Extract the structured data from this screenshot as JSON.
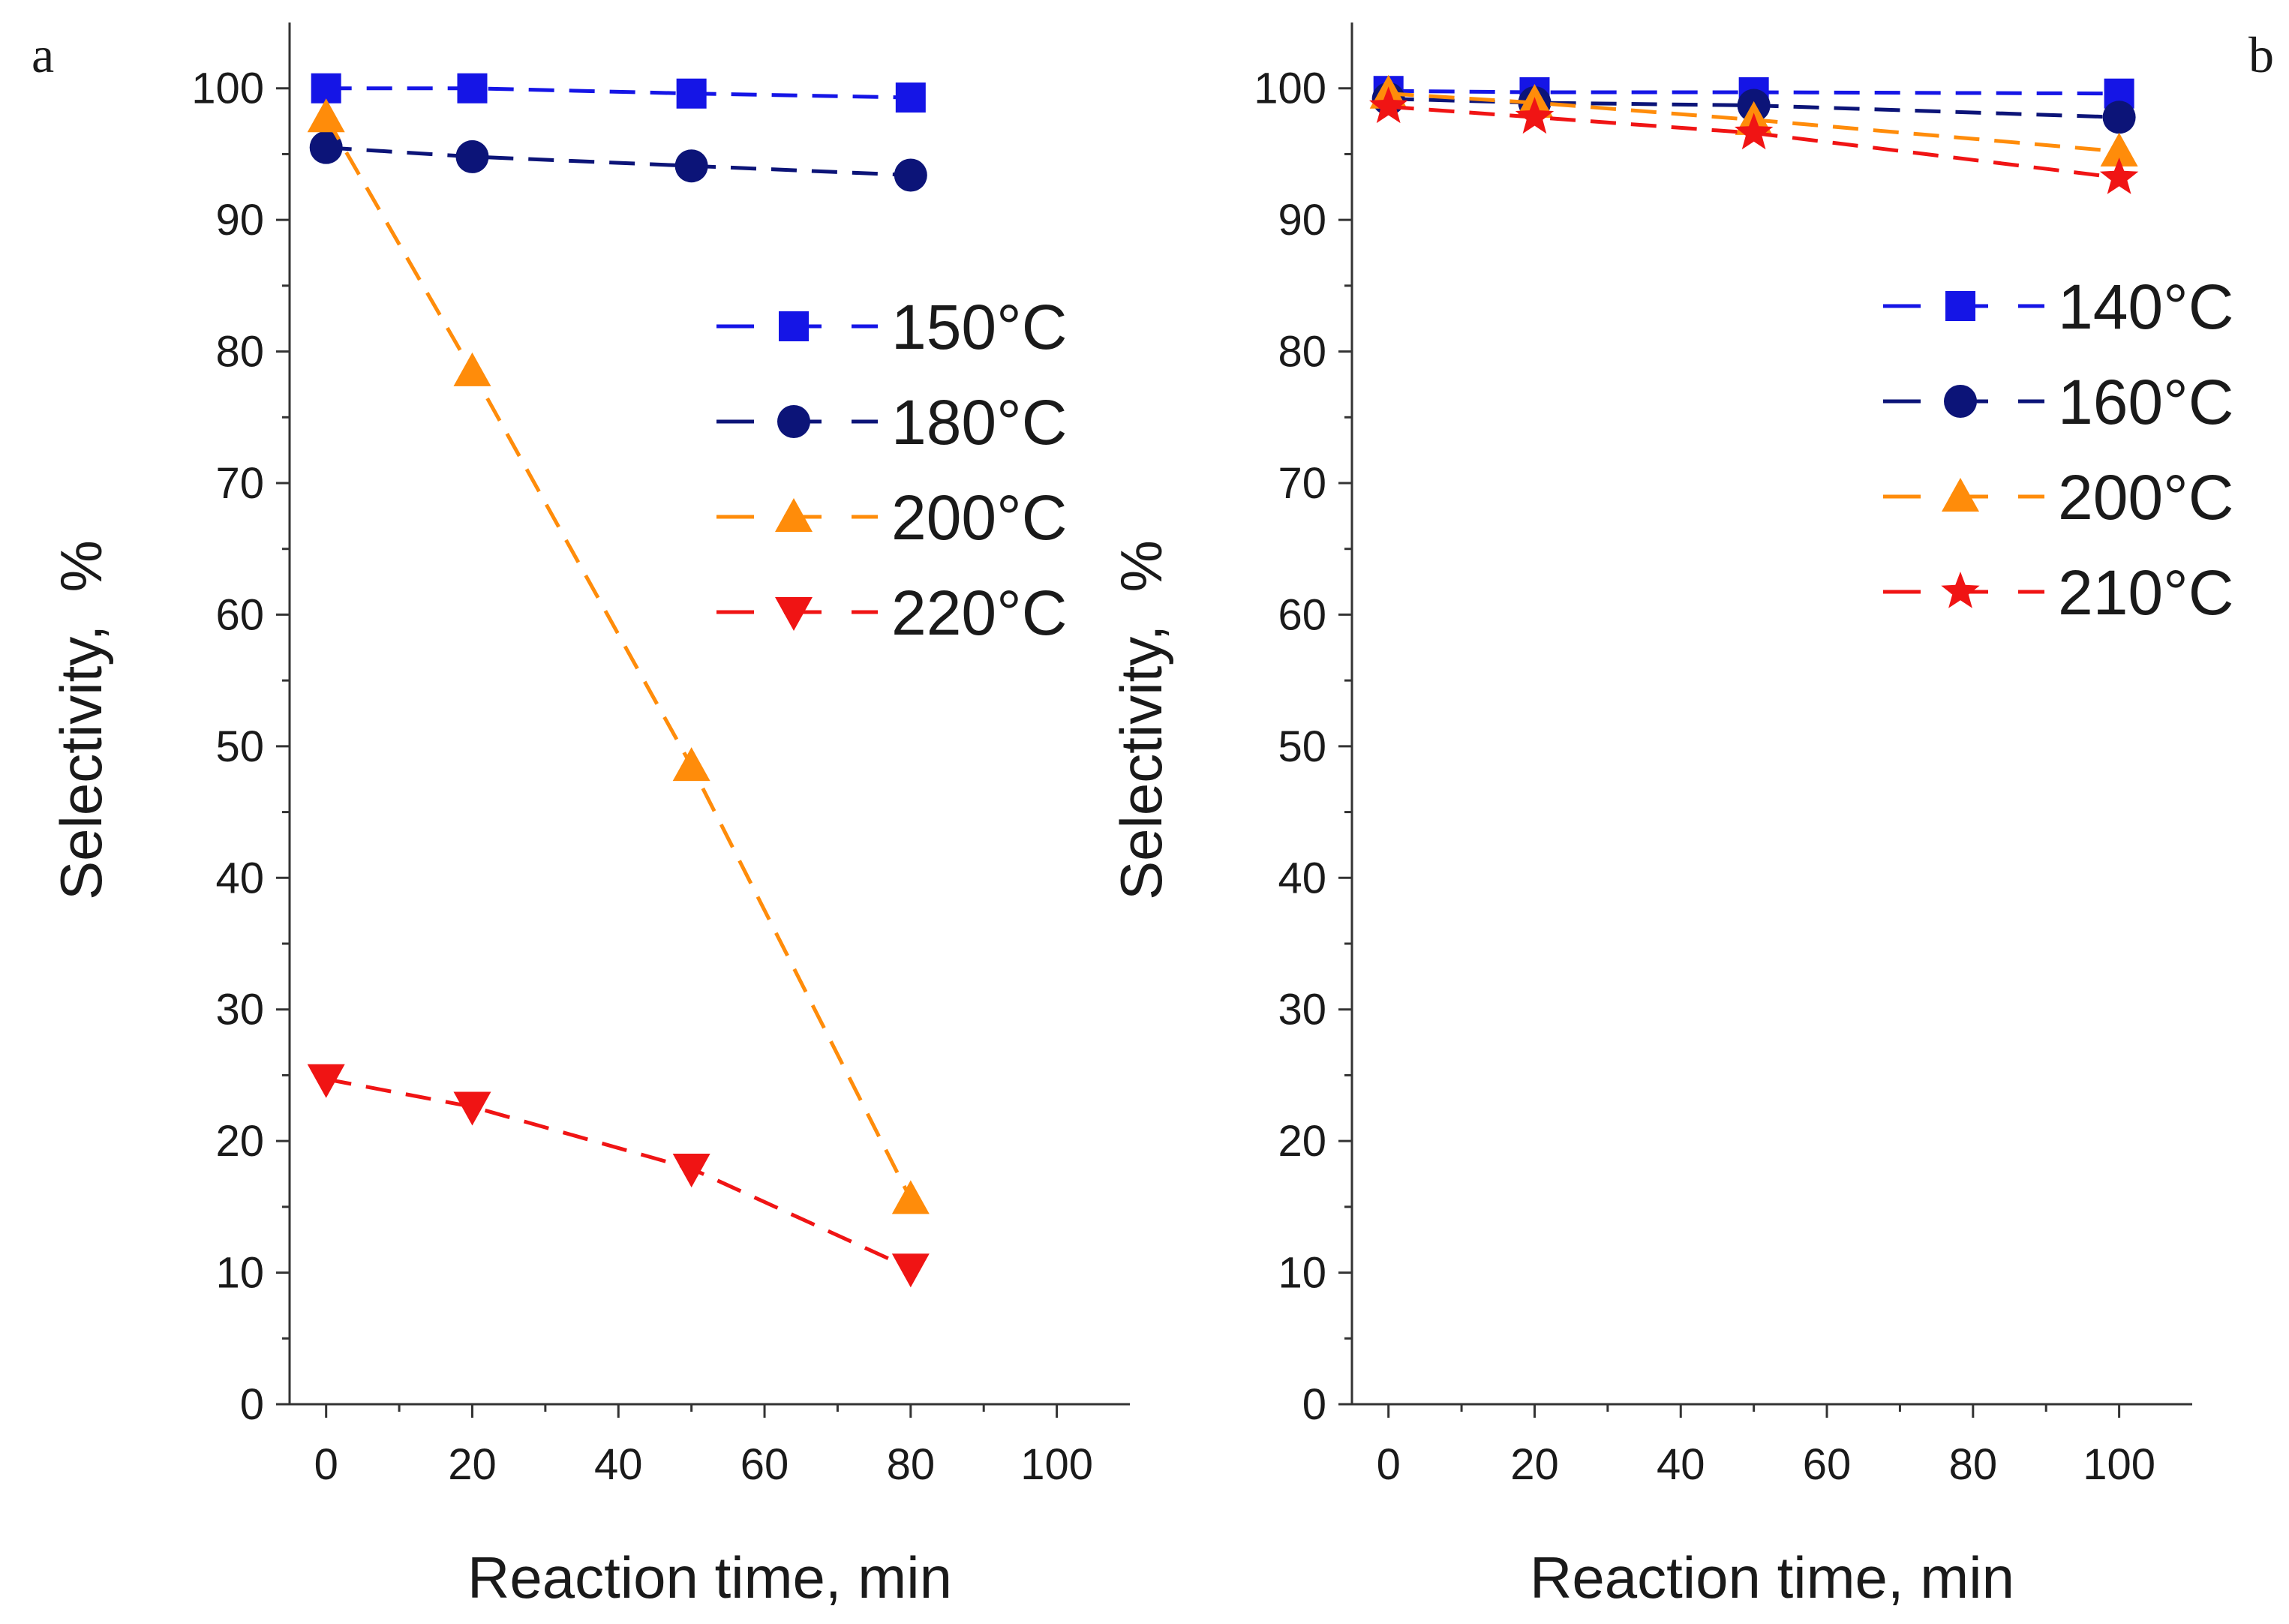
{
  "chart_data": [
    {
      "panel_label": "a",
      "type": "line",
      "xlabel": "Reaction time, min",
      "ylabel": "Selectivity,  %",
      "xlim": [
        -5,
        110
      ],
      "ylim": [
        0,
        105
      ],
      "xticks": [
        0,
        20,
        40,
        60,
        80,
        100
      ],
      "yticks": [
        0,
        10,
        20,
        30,
        40,
        50,
        60,
        70,
        80,
        90,
        100
      ],
      "grid": false,
      "legend_position": "right",
      "series": [
        {
          "name": "150°C",
          "marker": "square",
          "color": "#1515e6",
          "x": [
            0,
            20,
            50,
            80
          ],
          "y": [
            100,
            100,
            99.6,
            99.3
          ]
        },
        {
          "name": "180°C",
          "marker": "circle",
          "color": "#0c1478",
          "x": [
            0,
            20,
            50,
            80
          ],
          "y": [
            95.5,
            94.8,
            94.1,
            93.4
          ]
        },
        {
          "name": "200°C",
          "marker": "triangle-up",
          "color": "#ff8c0a",
          "x": [
            0,
            20,
            50,
            80
          ],
          "y": [
            97.8,
            78.5,
            48.5,
            15.6
          ]
        },
        {
          "name": "220°C",
          "marker": "triangle-down",
          "color": "#f01414",
          "x": [
            0,
            20,
            50,
            80
          ],
          "y": [
            24.7,
            22.6,
            17.9,
            10.3
          ]
        }
      ]
    },
    {
      "panel_label": "b",
      "type": "line",
      "xlabel": "Reaction time, min",
      "ylabel": "Selectivity,  %",
      "xlim": [
        -5,
        110
      ],
      "ylim": [
        0,
        105
      ],
      "xticks": [
        0,
        20,
        40,
        60,
        80,
        100
      ],
      "yticks": [
        0,
        10,
        20,
        30,
        40,
        50,
        60,
        70,
        80,
        90,
        100
      ],
      "grid": false,
      "legend_position": "top-right",
      "series": [
        {
          "name": "140°C",
          "marker": "square",
          "color": "#1515e6",
          "x": [
            0,
            20,
            50,
            100
          ],
          "y": [
            99.8,
            99.7,
            99.7,
            99.6
          ]
        },
        {
          "name": "160°C",
          "marker": "circle",
          "color": "#0c1478",
          "x": [
            0,
            20,
            50,
            100
          ],
          "y": [
            99.2,
            98.9,
            98.7,
            97.8
          ]
        },
        {
          "name": "200°C",
          "marker": "triangle-up",
          "color": "#ff8c0a",
          "x": [
            0,
            20,
            50,
            100
          ],
          "y": [
            99.6,
            98.9,
            97.6,
            95.2
          ]
        },
        {
          "name": "210°C",
          "marker": "star",
          "color": "#f01414",
          "x": [
            0,
            20,
            50,
            100
          ],
          "y": [
            98.6,
            97.8,
            96.6,
            93.2
          ]
        }
      ]
    }
  ]
}
